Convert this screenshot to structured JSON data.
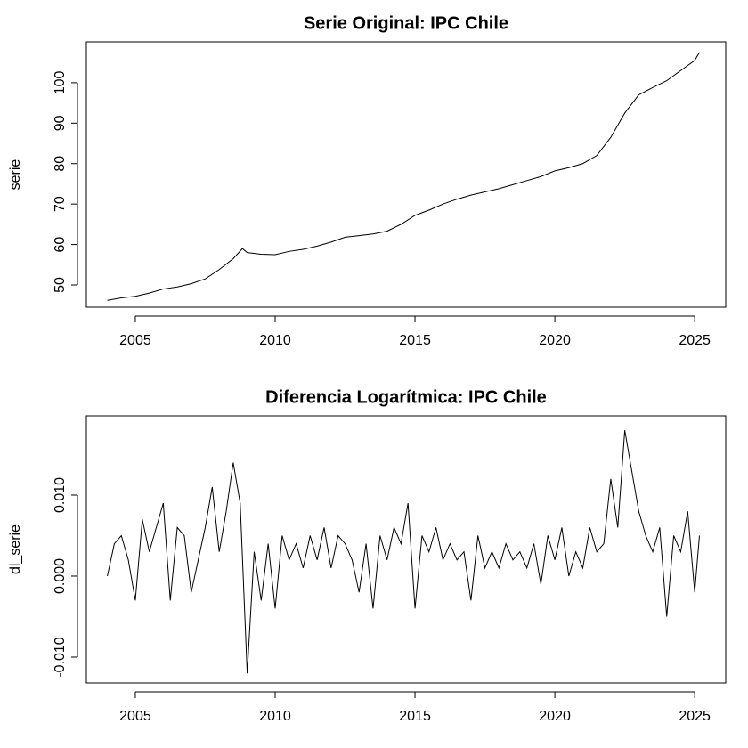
{
  "chart_data": [
    {
      "type": "line",
      "title": "Serie Original: IPC Chile",
      "ylabel": "serie",
      "color": "#000000",
      "x": [
        2004,
        2004.5,
        2005,
        2005.5,
        2006,
        2006.5,
        2007,
        2007.5,
        2008,
        2008.5,
        2008.83,
        2009,
        2009.5,
        2010,
        2010.5,
        2011,
        2011.5,
        2012,
        2012.5,
        2013,
        2013.5,
        2014,
        2014.5,
        2015,
        2015.5,
        2016,
        2016.5,
        2017,
        2017.5,
        2018,
        2018.5,
        2019,
        2019.5,
        2020,
        2020.5,
        2021,
        2021.5,
        2022,
        2022.5,
        2023,
        2023.5,
        2024,
        2024.5,
        2025,
        2025.17
      ],
      "values": [
        46.2,
        46.8,
        47.2,
        48.0,
        49.0,
        49.5,
        50.3,
        51.5,
        53.8,
        56.5,
        59.0,
        58.0,
        57.6,
        57.5,
        58.3,
        58.8,
        59.6,
        60.6,
        61.8,
        62.2,
        62.6,
        63.3,
        65.0,
        67.2,
        68.5,
        70.0,
        71.2,
        72.2,
        73.0,
        73.8,
        74.8,
        75.8,
        76.8,
        78.2,
        79.0,
        80.0,
        82.0,
        86.5,
        92.5,
        97.0,
        98.8,
        100.5,
        103.0,
        105.5,
        107.5
      ],
      "xlim": [
        2003.25,
        2026.11
      ],
      "ylim": [
        44.5,
        110.1
      ],
      "xticks": [
        2005,
        2010,
        2015,
        2020,
        2025
      ],
      "yticks": [
        50,
        60,
        70,
        80,
        90,
        100
      ]
    },
    {
      "type": "line",
      "title": "Diferencia Logarítmica: IPC Chile",
      "ylabel": "dl_serie",
      "color": "#000000",
      "x": [
        2004,
        2004.25,
        2004.5,
        2004.75,
        2005,
        2005.25,
        2005.5,
        2005.75,
        2006,
        2006.25,
        2006.5,
        2006.75,
        2007,
        2007.25,
        2007.5,
        2007.75,
        2008,
        2008.25,
        2008.5,
        2008.75,
        2009,
        2009.25,
        2009.5,
        2009.75,
        2010,
        2010.25,
        2010.5,
        2010.75,
        2011,
        2011.25,
        2011.5,
        2011.75,
        2012,
        2012.25,
        2012.5,
        2012.75,
        2013,
        2013.25,
        2013.5,
        2013.75,
        2014,
        2014.25,
        2014.5,
        2014.75,
        2015,
        2015.25,
        2015.5,
        2015.75,
        2016,
        2016.25,
        2016.5,
        2016.75,
        2017,
        2017.25,
        2017.5,
        2017.75,
        2018,
        2018.25,
        2018.5,
        2018.75,
        2019,
        2019.25,
        2019.5,
        2019.75,
        2020,
        2020.25,
        2020.5,
        2020.75,
        2021,
        2021.25,
        2021.5,
        2021.75,
        2022,
        2022.25,
        2022.5,
        2022.75,
        2023,
        2023.25,
        2023.5,
        2023.75,
        2024,
        2024.25,
        2024.5,
        2024.75,
        2025,
        2025.17
      ],
      "values": [
        0.0,
        0.004,
        0.005,
        0.002,
        -0.003,
        0.007,
        0.003,
        0.006,
        0.009,
        -0.003,
        0.006,
        0.005,
        -0.002,
        0.002,
        0.006,
        0.011,
        0.003,
        0.008,
        0.014,
        0.009,
        -0.012,
        0.003,
        -0.003,
        0.004,
        -0.004,
        0.005,
        0.002,
        0.004,
        0.001,
        0.005,
        0.002,
        0.006,
        0.001,
        0.005,
        0.004,
        0.002,
        -0.002,
        0.004,
        -0.004,
        0.005,
        0.002,
        0.006,
        0.004,
        0.009,
        -0.004,
        0.005,
        0.003,
        0.006,
        0.002,
        0.004,
        0.002,
        0.003,
        -0.003,
        0.005,
        0.001,
        0.003,
        0.001,
        0.004,
        0.002,
        0.003,
        0.001,
        0.004,
        -0.001,
        0.005,
        0.002,
        0.006,
        0.0,
        0.003,
        0.001,
        0.006,
        0.003,
        0.004,
        0.012,
        0.006,
        0.018,
        0.013,
        0.008,
        0.005,
        0.003,
        0.006,
        -0.005,
        0.005,
        0.003,
        0.008,
        -0.002,
        0.005
      ],
      "xlim": [
        2003.25,
        2026.11
      ],
      "ylim": [
        -0.01319,
        0.01978
      ],
      "xticks": [
        2005,
        2010,
        2015,
        2020,
        2025
      ],
      "yticks": [
        {
          "value": -0.01,
          "label": "-0.010"
        },
        {
          "value": 0,
          "label": "0.000"
        },
        {
          "value": 0.01,
          "label": "0.010"
        }
      ]
    }
  ]
}
